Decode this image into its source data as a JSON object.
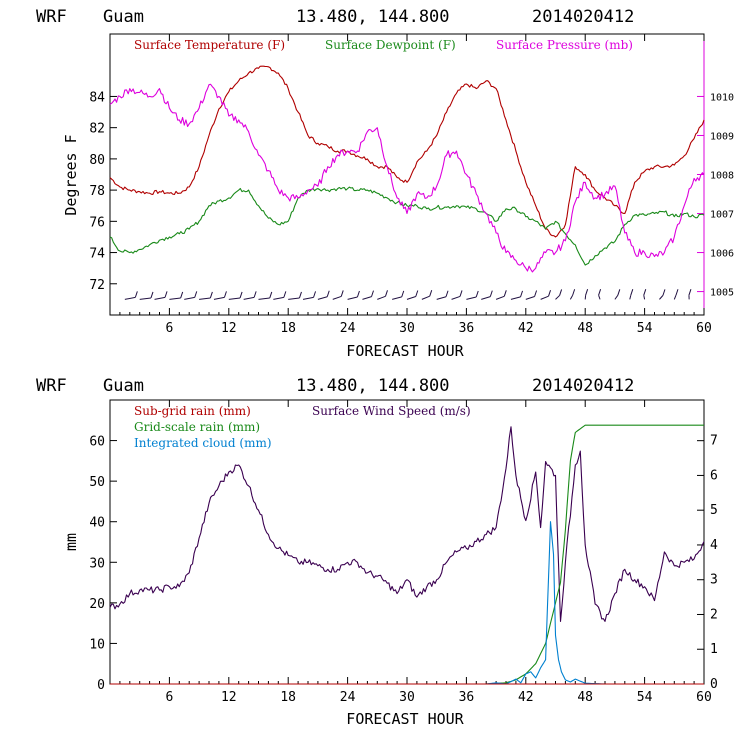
{
  "colors": {
    "temperature": "#b00000",
    "dewpoint": "#1a8a1a",
    "pressure": "#dd00dd",
    "wind_speed": "#3a0050",
    "subgrid_rain": "#b00000",
    "gridscale_rain": "#1a8a1a",
    "cloud": "#0080d0",
    "wind_barb": "#201040"
  },
  "chart_data": [
    {
      "type": "line",
      "header": {
        "model": "WRF",
        "location": "Guam",
        "coords": "13.480, 144.800",
        "init": "2014020412"
      },
      "xlabel": "FORECAST HOUR",
      "ylabel": "Degrees F",
      "xlim": [
        0,
        60
      ],
      "xticks": [
        "6",
        "12",
        "18",
        "24",
        "30",
        "36",
        "42",
        "48",
        "54",
        "60"
      ],
      "ylim": [
        70,
        88
      ],
      "yticks": [
        "72",
        "74",
        "76",
        "78",
        "80",
        "82",
        "84"
      ],
      "y2lim": [
        1004.4,
        1011.6
      ],
      "y2ticks": [
        "1005",
        "1006",
        "1007",
        "1008",
        "1009",
        "1010"
      ],
      "legend": [
        "Surface Temperature (F)",
        "Surface Dewpoint (F)",
        "Surface Pressure (mb)"
      ],
      "series": [
        {
          "name": "Surface Temperature (F)",
          "axis": "left",
          "x": [
            0,
            1,
            2,
            3,
            4,
            5,
            6,
            7,
            8,
            9,
            10,
            11,
            12,
            13,
            14,
            15,
            16,
            17,
            18,
            19,
            20,
            21,
            22,
            23,
            24,
            25,
            26,
            27,
            28,
            29,
            30,
            31,
            32,
            33,
            34,
            35,
            36,
            37,
            38,
            39,
            40,
            41,
            42,
            43,
            44,
            45,
            46,
            47,
            48,
            49,
            50,
            51,
            52,
            53,
            54,
            55,
            56,
            57,
            58,
            59,
            60
          ],
          "values": [
            78.8,
            78.2,
            78.0,
            77.9,
            77.8,
            77.9,
            77.8,
            77.8,
            78.2,
            79.5,
            81.5,
            83.2,
            84.3,
            85.0,
            85.5,
            85.8,
            85.9,
            85.5,
            84.5,
            83.0,
            81.5,
            81.0,
            80.8,
            80.5,
            80.5,
            80.2,
            80.0,
            79.5,
            79.5,
            78.8,
            78.5,
            79.8,
            80.5,
            81.5,
            83.0,
            84.2,
            84.8,
            84.5,
            85.0,
            84.5,
            82.5,
            80.5,
            78.5,
            77.0,
            75.5,
            75.0,
            75.8,
            79.5,
            79.0,
            78.0,
            77.5,
            77.0,
            76.5,
            78.5,
            79.2,
            79.5,
            79.5,
            79.6,
            80.2,
            81.3,
            82.5
          ]
        },
        {
          "name": "Surface Dewpoint (F)",
          "axis": "left",
          "x": [
            0,
            1,
            2,
            3,
            4,
            5,
            6,
            7,
            8,
            9,
            10,
            11,
            12,
            13,
            14,
            15,
            16,
            17,
            18,
            19,
            20,
            21,
            22,
            23,
            24,
            25,
            26,
            27,
            28,
            29,
            30,
            31,
            32,
            33,
            34,
            35,
            36,
            37,
            38,
            39,
            40,
            41,
            42,
            43,
            44,
            45,
            46,
            47,
            48,
            49,
            50,
            51,
            52,
            53,
            54,
            55,
            56,
            57,
            58,
            59,
            60
          ],
          "values": [
            75.0,
            74.1,
            74.0,
            74.2,
            74.5,
            74.8,
            75.0,
            75.2,
            75.5,
            76.0,
            77.0,
            77.3,
            77.5,
            78.0,
            78.0,
            77.0,
            76.2,
            75.8,
            76.0,
            77.5,
            78.0,
            78.1,
            78.0,
            78.1,
            78.1,
            78.0,
            78.0,
            77.8,
            77.5,
            77.2,
            77.0,
            77.0,
            76.8,
            76.9,
            76.9,
            77.0,
            76.9,
            76.8,
            76.5,
            76.0,
            76.8,
            76.8,
            76.3,
            76.0,
            75.5,
            76.0,
            75.2,
            74.5,
            73.2,
            73.8,
            74.3,
            74.7,
            75.8,
            76.4,
            76.4,
            76.5,
            76.6,
            76.3,
            76.5,
            76.3,
            76.4
          ]
        },
        {
          "name": "Surface Pressure (mb)",
          "axis": "right",
          "x": [
            0,
            1,
            2,
            3,
            4,
            5,
            6,
            7,
            8,
            9,
            10,
            11,
            12,
            13,
            14,
            15,
            16,
            17,
            18,
            19,
            20,
            21,
            22,
            23,
            24,
            25,
            26,
            27,
            28,
            29,
            30,
            31,
            32,
            33,
            34,
            35,
            36,
            37,
            38,
            39,
            40,
            41,
            42,
            43,
            44,
            45,
            46,
            47,
            48,
            49,
            50,
            51,
            52,
            53,
            54,
            55,
            56,
            57,
            58,
            59,
            60
          ],
          "values": [
            1009.8,
            1010.0,
            1010.2,
            1010.1,
            1010.0,
            1010.2,
            1009.7,
            1009.4,
            1009.3,
            1009.7,
            1010.3,
            1010.0,
            1009.5,
            1009.4,
            1009.1,
            1008.5,
            1008.1,
            1007.6,
            1007.4,
            1007.4,
            1007.6,
            1007.7,
            1008.2,
            1008.5,
            1008.6,
            1008.6,
            1009.1,
            1009.2,
            1008.2,
            1007.4,
            1007.0,
            1007.5,
            1007.4,
            1007.7,
            1008.5,
            1008.6,
            1008.0,
            1007.5,
            1007.0,
            1006.5,
            1006.0,
            1005.8,
            1005.6,
            1005.6,
            1006.0,
            1006.0,
            1006.3,
            1007.3,
            1007.8,
            1007.4,
            1007.5,
            1007.7,
            1006.5,
            1006.0,
            1006.0,
            1005.9,
            1006.0,
            1006.4,
            1007.2,
            1007.9,
            1008.0
          ]
        }
      ],
      "annotations": [
        "wind barbs along y=71"
      ]
    },
    {
      "type": "line",
      "header": {
        "model": "WRF",
        "location": "Guam",
        "coords": "13.480, 144.800",
        "init": "2014020412"
      },
      "xlabel": "FORECAST HOUR",
      "ylabel": "mm",
      "xlim": [
        0,
        60
      ],
      "xticks": [
        "6",
        "12",
        "18",
        "24",
        "30",
        "36",
        "42",
        "48",
        "54",
        "60"
      ],
      "ylim": [
        0,
        70
      ],
      "yticks": [
        "0",
        "10",
        "20",
        "30",
        "40",
        "50",
        "60"
      ],
      "y2lim": [
        0,
        8.17
      ],
      "y2ticks": [
        "0",
        "1",
        "2",
        "3",
        "4",
        "5",
        "6",
        "7"
      ],
      "legend": [
        "Sub-grid rain (mm)",
        "Grid-scale rain (mm)",
        "Integrated cloud (mm)",
        "Surface Wind Speed (m/s)"
      ],
      "series": [
        {
          "name": "Surface Wind Speed (m/s)",
          "axis": "right",
          "x": [
            0,
            1,
            2,
            3,
            4,
            5,
            6,
            7,
            8,
            9,
            10,
            11,
            12,
            13,
            14,
            15,
            16,
            17,
            18,
            19,
            20,
            21,
            22,
            23,
            24,
            25,
            26,
            27,
            28,
            29,
            30,
            31,
            32,
            33,
            34,
            35,
            36,
            37,
            38,
            39,
            40,
            40.5,
            41,
            42,
            43,
            43.5,
            44,
            45,
            45.5,
            46,
            47,
            47.5,
            48,
            49,
            50,
            51,
            52,
            53,
            54,
            55,
            56,
            57,
            58,
            59,
            60
          ],
          "values": [
            2.2,
            2.3,
            2.6,
            2.7,
            2.7,
            2.7,
            2.8,
            2.8,
            3.2,
            4.2,
            5.2,
            5.7,
            6.1,
            6.3,
            5.7,
            5.0,
            4.3,
            3.9,
            3.7,
            3.5,
            3.5,
            3.4,
            3.3,
            3.3,
            3.5,
            3.5,
            3.2,
            3.1,
            2.9,
            2.6,
            3.0,
            2.5,
            2.8,
            3.0,
            3.5,
            3.8,
            3.9,
            4.1,
            4.3,
            4.5,
            6.2,
            7.4,
            6.0,
            4.7,
            6.1,
            4.5,
            6.4,
            6.0,
            1.8,
            3.5,
            6.3,
            6.7,
            4.0,
            2.3,
            1.8,
            2.6,
            3.3,
            3.0,
            2.8,
            2.4,
            3.8,
            3.4,
            3.5,
            3.6,
            4.1
          ]
        },
        {
          "name": "Grid-scale rain (mm)",
          "axis": "left",
          "x": [
            0,
            38,
            40,
            41,
            42,
            43,
            44,
            44.5,
            45,
            45.5,
            46,
            46.5,
            47,
            48,
            60
          ],
          "values": [
            0,
            0,
            0.3,
            1.0,
            2.5,
            5.0,
            10.0,
            15.0,
            20.0,
            25.0,
            38.0,
            55.0,
            62.0,
            63.8,
            63.8
          ]
        },
        {
          "name": "Integrated cloud (mm)",
          "axis": "left",
          "x": [
            0,
            38,
            39,
            40,
            41,
            41.5,
            42,
            42.5,
            43,
            43.5,
            44,
            44.2,
            44.5,
            44.8,
            45,
            45.3,
            45.6,
            46,
            46.5,
            47,
            48,
            49,
            50,
            60
          ],
          "values": [
            0,
            0,
            0.3,
            0,
            1.2,
            0.3,
            2.5,
            3.0,
            1.5,
            4.0,
            6.0,
            20.0,
            40.0,
            32.0,
            12.0,
            6.0,
            3.0,
            1.0,
            0.5,
            1.2,
            0.2,
            0.1,
            0,
            0
          ]
        },
        {
          "name": "Sub-grid rain (mm)",
          "axis": "left",
          "x": [
            0,
            60
          ],
          "values": [
            0,
            0
          ]
        }
      ]
    }
  ]
}
